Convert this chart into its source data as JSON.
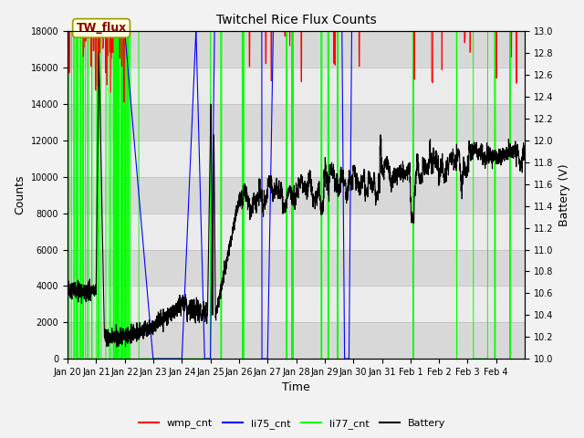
{
  "title": "Twitchel Rice Flux Counts",
  "xlabel": "Time",
  "ylabel_left": "Counts",
  "ylabel_right": "Battery (V)",
  "ylim_left": [
    0,
    18000
  ],
  "ylim_right": [
    10.0,
    13.0
  ],
  "annotation_text": "TW_flux",
  "xtick_labels": [
    "Jan 20",
    "Jan 21",
    "Jan 22",
    "Jan 23",
    "Jan 24",
    "Jan 25",
    "Jan 26",
    "Jan 27",
    "Jan 28",
    "Jan 29",
    "Jan 30",
    "Jan 31",
    "Feb 1",
    "Feb 2",
    "Feb 3",
    "Feb 4"
  ],
  "legend_entries": [
    "wmp_cnt",
    "li75_cnt",
    "li77_cnt",
    "Battery"
  ],
  "legend_colors": [
    "red",
    "blue",
    "lime",
    "black"
  ],
  "colors": {
    "wmp_cnt": "red",
    "li75_cnt": "blue",
    "li77_cnt": "lime",
    "battery": "black"
  },
  "bg_color_light": "#ebebeb",
  "bg_color_dark": "#d8d8d8",
  "fig_bg": "#f2f2f2"
}
